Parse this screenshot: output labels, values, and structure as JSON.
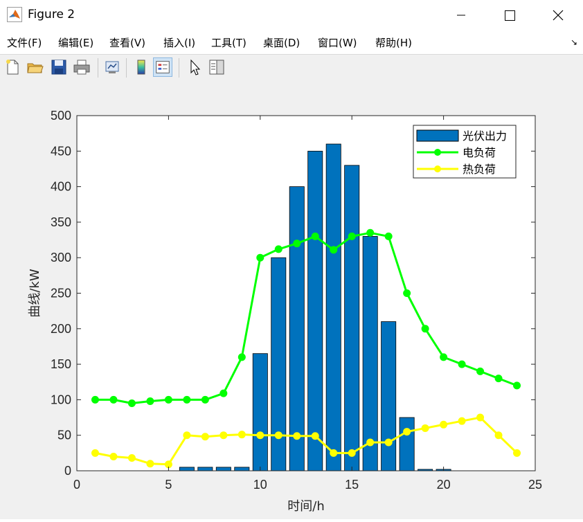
{
  "window": {
    "title": "Figure 2",
    "controls": [
      "minimize",
      "maximize",
      "close"
    ]
  },
  "menu": {
    "items": [
      "文件(F)",
      "编辑(E)",
      "查看(V)",
      "插入(I)",
      "工具(T)",
      "桌面(D)",
      "窗口(W)",
      "帮助(H)"
    ]
  },
  "toolbar": {
    "buttons": [
      "new-figure-icon",
      "open-folder-icon",
      "save-icon",
      "print-icon",
      "link-plot-icon",
      "colorbar-icon",
      "legend-icon",
      "cursor-icon",
      "property-inspector-icon"
    ],
    "active": "legend-icon"
  },
  "colors": {
    "bar": "#0072BD",
    "electric": "#00FF00",
    "heat": "#FFFF00",
    "canvas": "#f0f0f0",
    "axes_bg": "#ffffff"
  },
  "chart_data": {
    "type": "bar",
    "title": "",
    "xlabel": "时间/h",
    "ylabel": "曲线/kW",
    "xlim": [
      0,
      25
    ],
    "ylim": [
      0,
      500
    ],
    "xticks": [
      0,
      5,
      10,
      15,
      20,
      25
    ],
    "yticks": [
      0,
      50,
      100,
      150,
      200,
      250,
      300,
      350,
      400,
      450,
      500
    ],
    "x": [
      1,
      2,
      3,
      4,
      5,
      6,
      7,
      8,
      9,
      10,
      11,
      12,
      13,
      14,
      15,
      16,
      17,
      18,
      19,
      20,
      21,
      22,
      23,
      24
    ],
    "grid": false,
    "legend_position": "top-right",
    "series": [
      {
        "name": "光伏出力",
        "type": "bar",
        "color": "#0072BD",
        "values": [
          0,
          0,
          0,
          0,
          0,
          5,
          5,
          5,
          5,
          165,
          300,
          400,
          450,
          460,
          430,
          330,
          210,
          75,
          2,
          2,
          0,
          0,
          0,
          0
        ]
      },
      {
        "name": "电负荷",
        "type": "line",
        "marker": "o",
        "color": "#00FF00",
        "values": [
          100,
          100,
          95,
          98,
          100,
          100,
          100,
          109,
          160,
          300,
          312,
          320,
          330,
          311,
          330,
          335,
          330,
          250,
          200,
          160,
          150,
          140,
          130,
          120
        ]
      },
      {
        "name": "热负荷",
        "type": "line",
        "marker": "o",
        "color": "#FFFF00",
        "values": [
          25,
          20,
          18,
          10,
          9,
          50,
          48,
          50,
          51,
          50,
          50,
          49,
          49,
          25,
          25,
          40,
          40,
          55,
          60,
          65,
          70,
          75,
          50,
          25
        ]
      }
    ]
  }
}
